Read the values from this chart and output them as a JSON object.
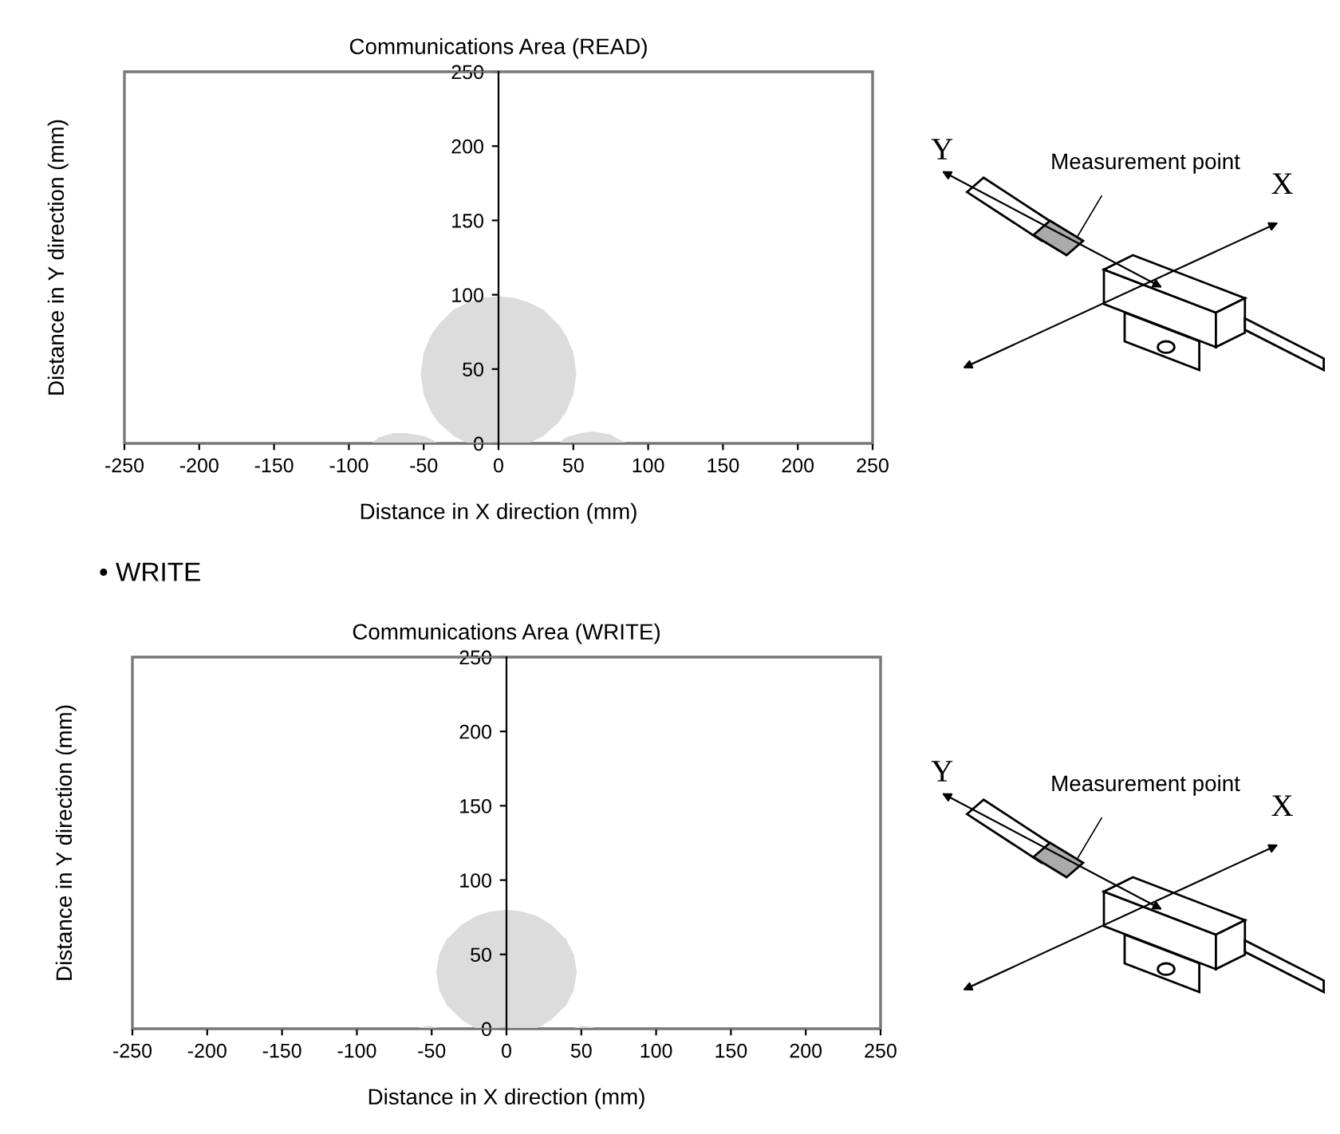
{
  "chart_data": [
    {
      "type": "area",
      "title": "Communications Area (READ)",
      "xlabel": "Distance in X direction (mm)",
      "ylabel": "Distance in Y direction (mm)",
      "series": [
        {
          "color": "#dcdcdc",
          "x": [
            -52,
            -50,
            -45,
            -40,
            -30,
            -20,
            -10,
            0,
            10,
            20,
            30,
            40,
            45,
            50,
            52,
            50,
            45,
            40,
            30,
            20,
            -20,
            -30,
            -40,
            -45,
            -50
          ],
          "values": [
            47,
            61,
            73,
            80,
            90,
            95,
            98,
            99,
            98,
            95,
            90,
            80,
            73,
            61,
            47,
            33,
            21,
            14,
            5,
            0,
            0,
            5,
            14,
            21,
            33
          ]
        },
        {
          "color": "#dcdcdc",
          "x": [
            -85,
            -80,
            -70,
            -62,
            -50,
            -45,
            -40
          ],
          "values": [
            0,
            4,
            7,
            7,
            5,
            3,
            0
          ]
        },
        {
          "color": "#dcdcdc",
          "x": [
            40,
            45,
            55,
            63,
            75,
            80,
            86
          ],
          "values": [
            0,
            4,
            7,
            8,
            6,
            3,
            0
          ]
        }
      ],
      "xlim": [
        -250,
        250
      ],
      "ylim": [
        0,
        250
      ],
      "xticks": [
        -250,
        -200,
        -150,
        -100,
        -50,
        0,
        50,
        100,
        150,
        200,
        250
      ],
      "yticks": [
        0,
        50,
        100,
        150,
        200,
        250
      ],
      "grid": false,
      "legend": false,
      "annotations": [
        "Measurement point",
        "Y",
        "X"
      ]
    },
    {
      "type": "area",
      "title": "Communications Area (WRITE)",
      "xlabel": "Distance in X direction (mm)",
      "ylabel": "Distance in Y direction (mm)",
      "series": [
        {
          "color": "#dcdcdc",
          "x": [
            -47,
            -45,
            -40,
            -30,
            -20,
            -10,
            0,
            10,
            20,
            30,
            40,
            45,
            47,
            45,
            40,
            30,
            20,
            -20,
            -30,
            -40,
            -45
          ],
          "values": [
            38,
            50,
            60,
            70,
            76,
            79,
            80,
            79,
            76,
            70,
            60,
            50,
            38,
            26,
            16,
            6,
            0,
            0,
            6,
            16,
            26
          ]
        },
        {
          "color": "#dcdcdc",
          "x": [
            -62,
            -52,
            -42
          ],
          "values": [
            0,
            2,
            0
          ]
        },
        {
          "color": "#dcdcdc",
          "x": [
            42,
            52,
            62
          ],
          "values": [
            0,
            2,
            0
          ]
        }
      ],
      "xlim": [
        -250,
        250
      ],
      "ylim": [
        0,
        250
      ],
      "xticks": [
        -250,
        -200,
        -150,
        -100,
        -50,
        0,
        50,
        100,
        150,
        200,
        250
      ],
      "yticks": [
        0,
        50,
        100,
        150,
        200,
        250
      ],
      "grid": false,
      "legend": false,
      "annotations": [
        "• WRITE",
        "Measurement point",
        "Y",
        "X"
      ]
    }
  ]
}
